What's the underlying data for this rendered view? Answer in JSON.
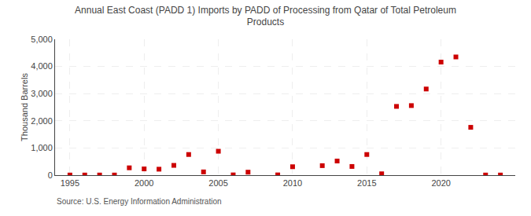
{
  "chart_data": {
    "type": "scatter",
    "title": "Annual East Coast (PADD 1) Imports by PADD of Processing from Qatar of Total Petroleum\nProducts",
    "ylabel": "Thousand Barrels",
    "annotations": [
      "Source: U.S. Energy Information Administration"
    ],
    "x": [
      1995,
      1996,
      1997,
      1998,
      1999,
      2000,
      2001,
      2002,
      2003,
      2004,
      2005,
      2006,
      2007,
      2009,
      2010,
      2012,
      2013,
      2014,
      2015,
      2016,
      2017,
      2018,
      2019,
      2020,
      2021,
      2022,
      2023,
      2024
    ],
    "values": [
      5,
      5,
      5,
      5,
      270,
      230,
      220,
      360,
      760,
      120,
      880,
      10,
      110,
      10,
      310,
      350,
      520,
      320,
      760,
      50,
      2530,
      2560,
      3170,
      4160,
      4350,
      1760,
      5,
      5
    ],
    "color": "#cc0000",
    "marker": "square",
    "xlim": [
      1994,
      2025
    ],
    "xticks": [
      1995,
      2000,
      2005,
      2010,
      2015,
      2020
    ],
    "ylim": [
      0,
      5000
    ],
    "yticks": [
      0,
      {
        "value": 1000,
        "label": "1,000"
      },
      {
        "value": 2000,
        "label": "2,000"
      },
      {
        "value": 3000,
        "label": "3,000"
      },
      {
        "value": 4000,
        "label": "4,000"
      },
      {
        "value": 5000,
        "label": "5,000"
      }
    ],
    "grid": true
  }
}
